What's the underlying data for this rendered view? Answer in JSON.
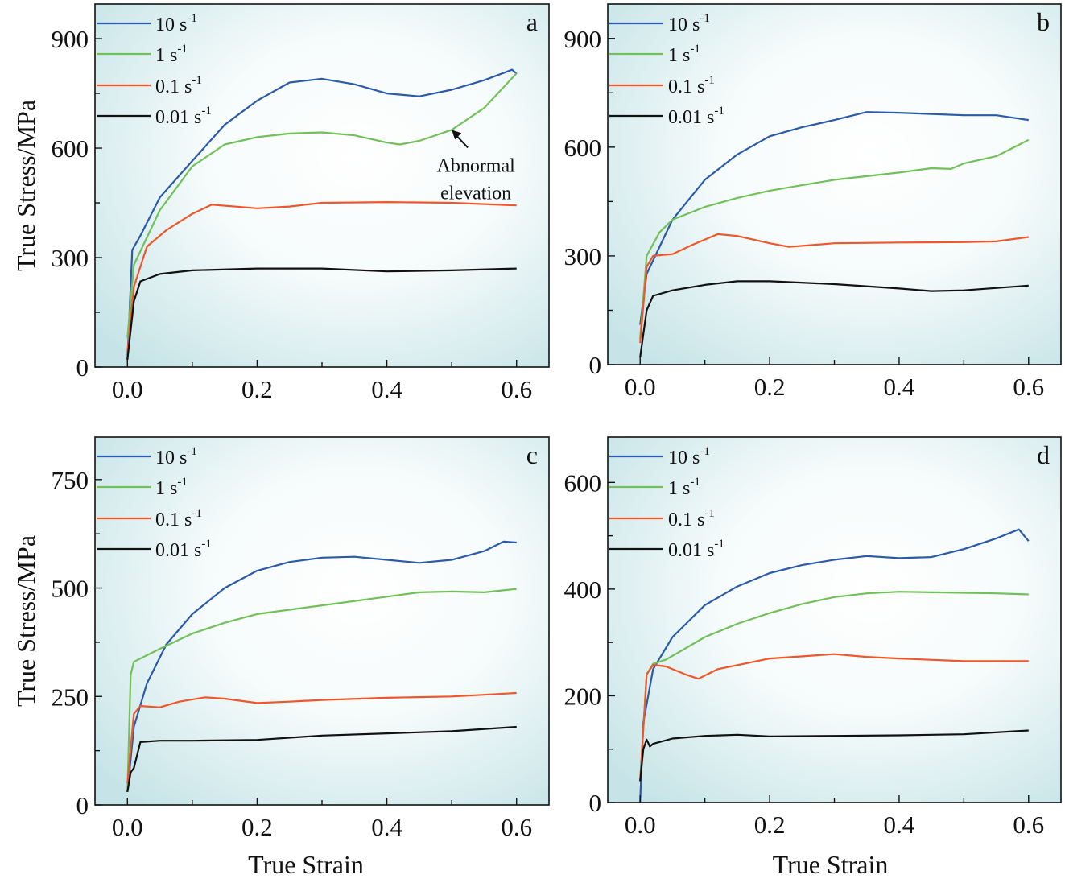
{
  "colors": {
    "10": "#2b5ba8",
    "1": "#72c05a",
    "0.1": "#f0562a",
    "0.01": "#111111",
    "bg_edge": "#cbe6e9",
    "bg_center": "#ffffff"
  },
  "chart_data": [
    {
      "type": "line",
      "panel_label": "a",
      "xlabel": "",
      "ylabel": "True Stress/MPa",
      "xlim": [
        -0.05,
        0.65
      ],
      "ylim": [
        0,
        995
      ],
      "xticks": [
        "0.0",
        "0.2",
        "0.4",
        "0.6"
      ],
      "xtick_values": [
        0,
        0.2,
        0.4,
        0.6
      ],
      "yticks": [
        "0",
        "300",
        "600",
        "900"
      ],
      "ytick_values": [
        0,
        300,
        600,
        900
      ],
      "legend_position": "top-left",
      "annotation": {
        "lines": [
          "Abnormal",
          "elevation"
        ],
        "points_to": [
          0.5,
          650
        ]
      },
      "series": [
        {
          "name": "10",
          "unit": "s",
          "exp": "-1",
          "x": [
            0,
            0.0075,
            0.02,
            0.05,
            0.1,
            0.15,
            0.2,
            0.25,
            0.3,
            0.35,
            0.4,
            0.45,
            0.5,
            0.55,
            0.593,
            0.6
          ],
          "y": [
            20,
            321,
            360,
            465,
            565,
            664,
            730,
            780,
            790,
            775,
            750,
            742,
            760,
            786,
            815,
            804
          ]
        },
        {
          "name": "1",
          "unit": "s",
          "exp": "-1",
          "x": [
            0,
            0.01,
            0.05,
            0.1,
            0.15,
            0.2,
            0.25,
            0.3,
            0.35,
            0.4,
            0.42,
            0.45,
            0.5,
            0.55,
            0.6
          ],
          "y": [
            80,
            280,
            430,
            550,
            610,
            630,
            640,
            643,
            635,
            615,
            610,
            620,
            650,
            710,
            805
          ]
        },
        {
          "name": "0.1",
          "unit": "s",
          "exp": "-1",
          "x": [
            0,
            0.01,
            0.03,
            0.06,
            0.1,
            0.13,
            0.2,
            0.25,
            0.3,
            0.4,
            0.5,
            0.6
          ],
          "y": [
            40,
            220,
            330,
            375,
            420,
            445,
            435,
            440,
            450,
            452,
            450,
            443
          ]
        },
        {
          "name": "0.01",
          "unit": "s",
          "exp": "-1",
          "x": [
            0,
            0.01,
            0.02,
            0.05,
            0.1,
            0.2,
            0.3,
            0.4,
            0.5,
            0.6
          ],
          "y": [
            20,
            180,
            235,
            255,
            265,
            270,
            270,
            262,
            265,
            270
          ]
        }
      ]
    },
    {
      "type": "line",
      "panel_label": "b",
      "xlabel": "",
      "ylabel": "",
      "xlim": [
        -0.05,
        0.65
      ],
      "ylim": [
        0,
        995
      ],
      "xticks": [
        "0.0",
        "0.2",
        "0.4",
        "0.6"
      ],
      "xtick_values": [
        0,
        0.2,
        0.4,
        0.6
      ],
      "yticks": [
        "0",
        "300",
        "600",
        "900"
      ],
      "ytick_values": [
        0,
        300,
        600,
        900
      ],
      "legend_position": "top-left",
      "series": [
        {
          "name": "10",
          "unit": "s",
          "exp": "-1",
          "x": [
            0,
            0.01,
            0.05,
            0.1,
            0.15,
            0.2,
            0.25,
            0.3,
            0.35,
            0.4,
            0.5,
            0.55,
            0.6
          ],
          "y": [
            110,
            250,
            400,
            510,
            580,
            630,
            655,
            675,
            697,
            695,
            688,
            688,
            675
          ]
        },
        {
          "name": "1",
          "unit": "s",
          "exp": "-1",
          "x": [
            0,
            0.01,
            0.03,
            0.05,
            0.1,
            0.15,
            0.2,
            0.25,
            0.3,
            0.35,
            0.4,
            0.45,
            0.48,
            0.5,
            0.55,
            0.6
          ],
          "y": [
            70,
            300,
            365,
            400,
            435,
            460,
            480,
            495,
            510,
            520,
            530,
            542,
            540,
            555,
            575,
            620
          ]
        },
        {
          "name": "0.1",
          "unit": "s",
          "exp": "-1",
          "x": [
            0,
            0.01,
            0.02,
            0.05,
            0.08,
            0.12,
            0.15,
            0.2,
            0.23,
            0.3,
            0.4,
            0.5,
            0.55,
            0.6
          ],
          "y": [
            60,
            270,
            300,
            305,
            330,
            360,
            355,
            335,
            325,
            335,
            337,
            338,
            340,
            352
          ]
        },
        {
          "name": "0.01",
          "unit": "s",
          "exp": "-1",
          "x": [
            0,
            0.01,
            0.02,
            0.05,
            0.1,
            0.15,
            0.2,
            0.3,
            0.4,
            0.45,
            0.5,
            0.6
          ],
          "y": [
            20,
            150,
            190,
            205,
            220,
            230,
            230,
            222,
            210,
            203,
            205,
            218
          ]
        }
      ]
    },
    {
      "type": "line",
      "panel_label": "c",
      "xlabel": "True Strain",
      "ylabel": "True Stress/MPa",
      "xlim": [
        -0.05,
        0.65
      ],
      "ylim": [
        0,
        848
      ],
      "xticks": [
        "0.0",
        "0.2",
        "0.4",
        "0.6"
      ],
      "xtick_values": [
        0,
        0.2,
        0.4,
        0.6
      ],
      "yticks": [
        "0",
        "250",
        "500",
        "750"
      ],
      "ytick_values": [
        0,
        250,
        500,
        750
      ],
      "legend_position": "top-left",
      "series": [
        {
          "name": "10",
          "unit": "s",
          "exp": "-1",
          "x": [
            0,
            0.01,
            0.03,
            0.06,
            0.1,
            0.15,
            0.2,
            0.25,
            0.3,
            0.35,
            0.4,
            0.45,
            0.5,
            0.55,
            0.58,
            0.6
          ],
          "y": [
            30,
            180,
            280,
            370,
            440,
            500,
            540,
            560,
            570,
            572,
            565,
            558,
            565,
            585,
            607,
            605
          ]
        },
        {
          "name": "1",
          "unit": "s",
          "exp": "-1",
          "x": [
            0,
            0.005,
            0.01,
            0.05,
            0.1,
            0.15,
            0.2,
            0.3,
            0.4,
            0.45,
            0.5,
            0.55,
            0.6
          ],
          "y": [
            30,
            300,
            330,
            360,
            395,
            420,
            440,
            460,
            480,
            490,
            492,
            490,
            498
          ]
        },
        {
          "name": "0.1",
          "unit": "s",
          "exp": "-1",
          "x": [
            0,
            0.01,
            0.02,
            0.05,
            0.08,
            0.12,
            0.15,
            0.2,
            0.25,
            0.3,
            0.4,
            0.5,
            0.6
          ],
          "y": [
            50,
            210,
            228,
            225,
            238,
            248,
            245,
            235,
            238,
            242,
            247,
            250,
            258
          ]
        },
        {
          "name": "0.01",
          "unit": "s",
          "exp": "-1",
          "x": [
            0,
            0.005,
            0.01,
            0.02,
            0.05,
            0.1,
            0.2,
            0.3,
            0.4,
            0.5,
            0.6
          ],
          "y": [
            30,
            75,
            85,
            145,
            148,
            148,
            150,
            160,
            165,
            170,
            180
          ]
        }
      ]
    },
    {
      "type": "line",
      "panel_label": "d",
      "xlabel": "True Strain",
      "ylabel": "",
      "xlim": [
        -0.05,
        0.65
      ],
      "ylim": [
        0,
        685
      ],
      "xticks": [
        "0.0",
        "0.2",
        "0.4",
        "0.6"
      ],
      "xtick_values": [
        0,
        0.2,
        0.4,
        0.6
      ],
      "yticks": [
        "0",
        "200",
        "400",
        "600"
      ],
      "ytick_values": [
        0,
        200,
        400,
        600
      ],
      "legend_position": "top-left",
      "series": [
        {
          "name": "10",
          "unit": "s",
          "exp": "-1",
          "x": [
            0,
            0.005,
            0.02,
            0.05,
            0.1,
            0.15,
            0.2,
            0.25,
            0.3,
            0.35,
            0.4,
            0.45,
            0.5,
            0.55,
            0.585,
            0.6
          ],
          "y": [
            0,
            150,
            250,
            310,
            370,
            405,
            430,
            445,
            455,
            462,
            458,
            460,
            475,
            495,
            512,
            490
          ]
        },
        {
          "name": "1",
          "unit": "s",
          "exp": "-1",
          "x": [
            0,
            0.01,
            0.02,
            0.04,
            0.1,
            0.15,
            0.2,
            0.25,
            0.3,
            0.35,
            0.4,
            0.5,
            0.55,
            0.6
          ],
          "y": [
            40,
            240,
            260,
            268,
            310,
            335,
            355,
            372,
            385,
            392,
            395,
            393,
            392,
            390
          ]
        },
        {
          "name": "0.1",
          "unit": "s",
          "exp": "-1",
          "x": [
            0,
            0.01,
            0.02,
            0.04,
            0.07,
            0.09,
            0.12,
            0.2,
            0.3,
            0.35,
            0.4,
            0.5,
            0.6
          ],
          "y": [
            40,
            240,
            258,
            255,
            240,
            232,
            250,
            270,
            278,
            273,
            270,
            265,
            265
          ]
        },
        {
          "name": "0.01",
          "unit": "s",
          "exp": "-1",
          "x": [
            0,
            0.005,
            0.01,
            0.015,
            0.02,
            0.05,
            0.1,
            0.15,
            0.2,
            0.3,
            0.4,
            0.5,
            0.6
          ],
          "y": [
            40,
            100,
            118,
            105,
            110,
            120,
            125,
            127,
            124,
            125,
            126,
            128,
            135
          ]
        }
      ]
    }
  ]
}
